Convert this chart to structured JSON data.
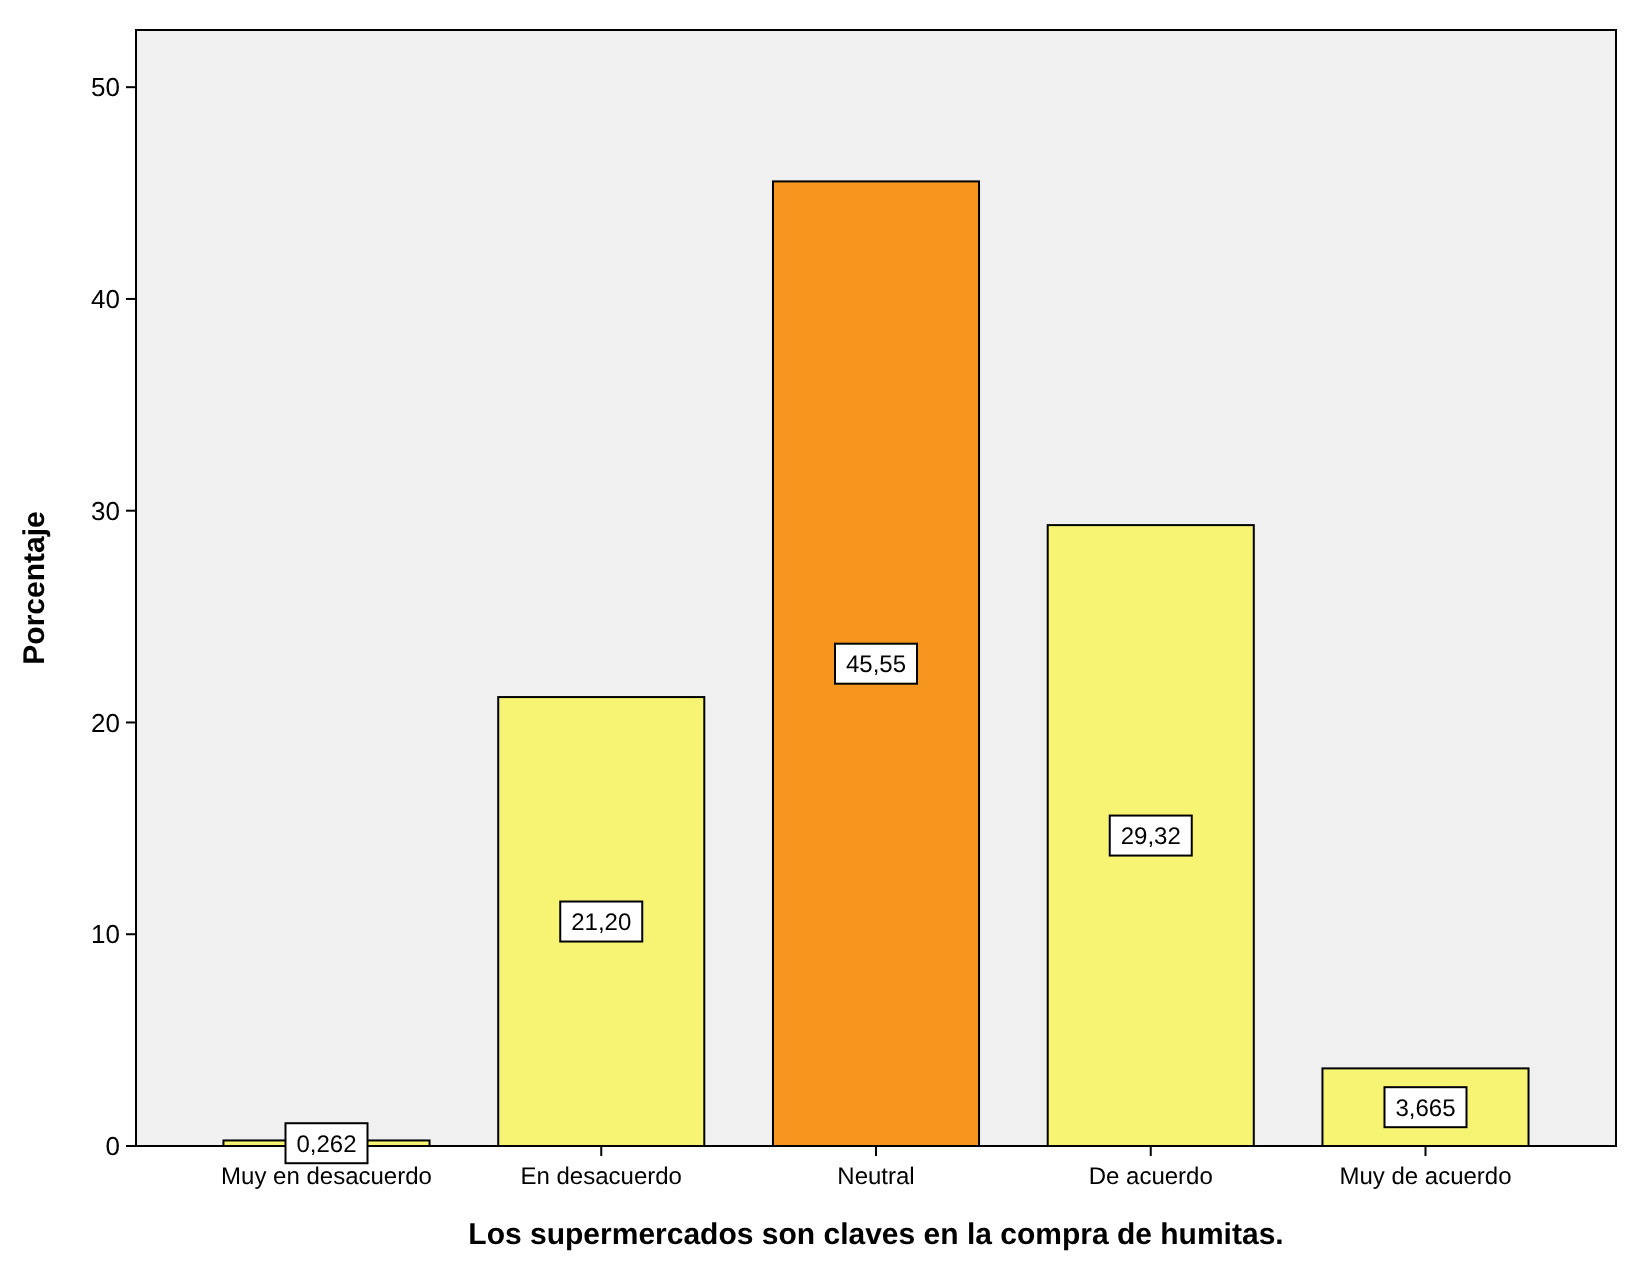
{
  "chart_data": {
    "type": "bar",
    "xlabel": "Los supermercados son claves en la compra de humitas.",
    "ylabel": "Porcentaje",
    "categories": [
      "Muy en desacuerdo",
      "En desacuerdo",
      "Neutral",
      "De acuerdo",
      "Muy de acuerdo"
    ],
    "values": [
      0.262,
      21.2,
      45.55,
      29.32,
      3.665
    ],
    "colors": [
      "#f7f474",
      "#f7f474",
      "#f7961e",
      "#f7f474",
      "#f7f474"
    ],
    "value_labels": [
      "0,262",
      "21,20",
      "45,55",
      "29,32",
      "3,665"
    ],
    "ylim": [
      0,
      52.7
    ],
    "yticks": [
      0,
      10,
      20,
      30,
      40,
      50
    ],
    "grid": false
  }
}
